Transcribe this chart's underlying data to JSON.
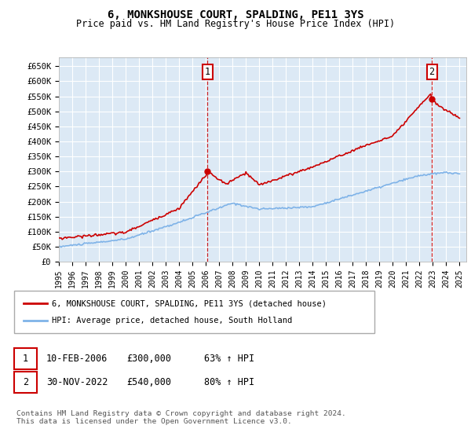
{
  "title": "6, MONKSHOUSE COURT, SPALDING, PE11 3YS",
  "subtitle": "Price paid vs. HM Land Registry's House Price Index (HPI)",
  "ylabel_ticks": [
    "£0",
    "£50K",
    "£100K",
    "£150K",
    "£200K",
    "£250K",
    "£300K",
    "£350K",
    "£400K",
    "£450K",
    "£500K",
    "£550K",
    "£600K",
    "£650K"
  ],
  "ytick_values": [
    0,
    50000,
    100000,
    150000,
    200000,
    250000,
    300000,
    350000,
    400000,
    450000,
    500000,
    550000,
    600000,
    650000
  ],
  "ylim": [
    0,
    680000
  ],
  "xlim_start": 1995.0,
  "xlim_end": 2025.5,
  "bg_color": "#dce9f5",
  "red_color": "#cc0000",
  "blue_color": "#7fb3e8",
  "sale1_x": 2006.11,
  "sale1_y": 300000,
  "sale2_x": 2022.92,
  "sale2_y": 540000,
  "legend_red_label": "6, MONKSHOUSE COURT, SPALDING, PE11 3YS (detached house)",
  "legend_blue_label": "HPI: Average price, detached house, South Holland",
  "ann1_date": "10-FEB-2006",
  "ann1_price": "£300,000",
  "ann1_hpi": "63% ↑ HPI",
  "ann2_date": "30-NOV-2022",
  "ann2_price": "£540,000",
  "ann2_hpi": "80% ↑ HPI",
  "footer": "Contains HM Land Registry data © Crown copyright and database right 2024.\nThis data is licensed under the Open Government Licence v3.0.",
  "xtick_years": [
    1995,
    1996,
    1997,
    1998,
    1999,
    2000,
    2001,
    2002,
    2003,
    2004,
    2005,
    2006,
    2007,
    2008,
    2009,
    2010,
    2011,
    2012,
    2013,
    2014,
    2015,
    2016,
    2017,
    2018,
    2019,
    2020,
    2021,
    2022,
    2023,
    2024,
    2025
  ]
}
